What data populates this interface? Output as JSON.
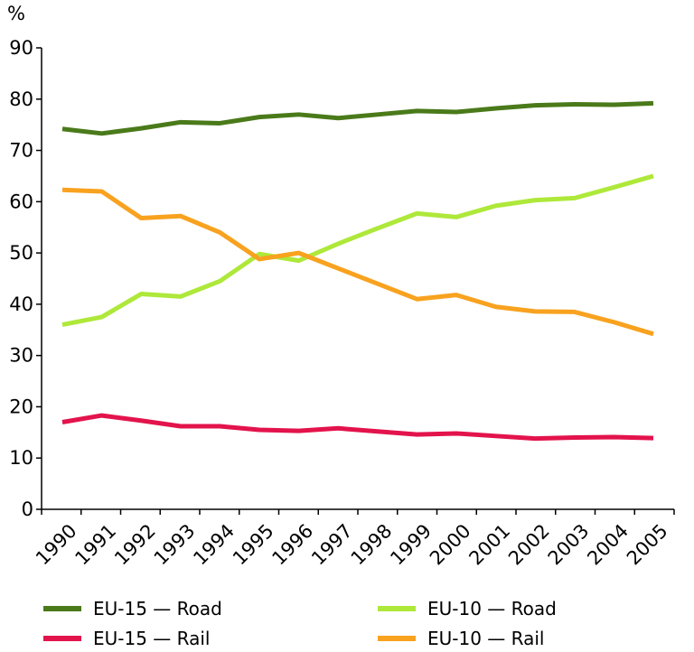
{
  "chart_data": {
    "type": "line",
    "ylabel": "%",
    "ylim": [
      0,
      90
    ],
    "yticks": [
      0,
      10,
      20,
      30,
      40,
      50,
      60,
      70,
      80,
      90
    ],
    "categories": [
      "1990",
      "1991",
      "1992",
      "1993",
      "1994",
      "1995",
      "1996",
      "1997",
      "1998",
      "1999",
      "2000",
      "2001",
      "2002",
      "2003",
      "2004",
      "2005"
    ],
    "grid": false,
    "legend_position": "bottom",
    "series": [
      {
        "name": "EU-15 — Road",
        "color": "#4a7a1a",
        "values": [
          74.2,
          73.3,
          74.3,
          75.5,
          75.3,
          76.5,
          77.0,
          76.3,
          77.0,
          77.7,
          77.5,
          78.2,
          78.8,
          79.0,
          78.9,
          79.2
        ]
      },
      {
        "name": "EU-10 — Road",
        "color": "#aee83a",
        "values": [
          36.0,
          37.5,
          42.0,
          41.5,
          44.5,
          49.8,
          48.5,
          51.8,
          54.8,
          57.7,
          57.0,
          59.2,
          60.3,
          60.7,
          62.8,
          65.0
        ]
      },
      {
        "name": "EU-15 — Rail",
        "color": "#e3134c",
        "values": [
          17.0,
          18.3,
          17.3,
          16.2,
          16.2,
          15.5,
          15.3,
          15.8,
          15.2,
          14.6,
          14.8,
          14.3,
          13.8,
          14.0,
          14.1,
          13.9
        ]
      },
      {
        "name": "EU-10 — Rail",
        "color": "#f8a21f",
        "values": [
          62.3,
          62.0,
          56.8,
          57.2,
          54.0,
          48.8,
          50.0,
          47.0,
          44.0,
          41.0,
          41.8,
          39.5,
          38.6,
          38.5,
          36.5,
          34.2
        ]
      }
    ]
  }
}
